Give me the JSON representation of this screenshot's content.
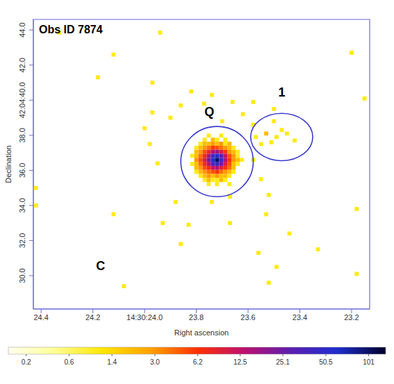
{
  "chart_data": {
    "type": "image",
    "title": "Obs ID 7874",
    "x_label": "Right ascension",
    "y_label": "Declination",
    "xlim": [
      24.43,
      23.13
    ],
    "xticks": [
      24.4,
      24.2,
      {
        "value": 24.0,
        "label": "14:30:24.0"
      },
      23.8,
      23.6,
      23.4,
      23.2
    ],
    "ylim": [
      28.1,
      44.6
    ],
    "yticks": [
      {
        "value": 30,
        "label": "30.0"
      },
      {
        "value": 32,
        "label": "32.0"
      },
      {
        "value": 34,
        "label": "34.0"
      },
      {
        "value": 36,
        "label": "36.0"
      },
      {
        "value": 38,
        "label": "38.0"
      },
      {
        "value": 40,
        "label": "42:04:40.0"
      },
      {
        "value": 42,
        "label": "42.0"
      },
      {
        "value": 44,
        "label": "44.0"
      }
    ],
    "pixel_size": [
      0.016,
      0.23
    ],
    "image": {
      "x": [
        23.816,
        23.8,
        23.784,
        23.768,
        23.752,
        23.736,
        23.72,
        23.704,
        23.688,
        23.672,
        23.656,
        23.64,
        23.624
      ],
      "y": [
        37.98,
        37.75,
        37.52,
        37.29,
        37.06,
        36.83,
        36.6,
        36.37,
        36.14,
        35.91,
        35.68,
        35.45,
        35.22
      ],
      "values": [
        [
          null,
          null,
          null,
          null,
          1,
          null,
          null,
          1,
          null,
          null,
          null,
          null,
          null
        ],
        [
          null,
          null,
          null,
          1,
          null,
          2,
          1,
          null,
          1,
          null,
          null,
          null,
          null
        ],
        [
          null,
          null,
          1,
          2,
          2,
          3,
          2,
          3,
          1,
          2,
          null,
          null,
          null
        ],
        [
          null,
          1,
          2,
          3,
          4,
          6,
          5,
          4,
          3,
          2,
          1,
          null,
          null
        ],
        [
          null,
          2,
          3,
          5,
          8,
          14,
          16,
          10,
          6,
          3,
          2,
          1,
          null
        ],
        [
          1,
          2,
          4,
          7,
          16,
          40,
          55,
          30,
          12,
          5,
          3,
          1,
          null
        ],
        [
          null,
          3,
          5,
          9,
          22,
          60,
          101,
          45,
          15,
          6,
          3,
          2,
          1
        ],
        [
          1,
          2,
          4,
          7,
          14,
          35,
          42,
          25,
          10,
          5,
          2,
          1,
          null
        ],
        [
          null,
          2,
          3,
          5,
          7,
          12,
          14,
          9,
          6,
          4,
          2,
          null,
          null
        ],
        [
          null,
          1,
          2,
          3,
          4,
          5,
          6,
          4,
          3,
          2,
          1,
          null,
          null
        ],
        [
          null,
          null,
          1,
          2,
          3,
          2,
          3,
          2,
          2,
          1,
          null,
          null,
          null
        ],
        [
          null,
          null,
          null,
          1,
          2,
          1,
          1,
          2,
          1,
          null,
          null,
          null,
          null
        ],
        [
          null,
          null,
          null,
          null,
          1,
          null,
          1,
          null,
          null,
          1,
          null,
          null,
          null
        ]
      ]
    },
    "events": [
      [
        24.33,
        43.85,
        1
      ],
      [
        23.94,
        43.85,
        1
      ],
      [
        24.12,
        42.6,
        1
      ],
      [
        23.2,
        42.7,
        1
      ],
      [
        24.18,
        41.3,
        1
      ],
      [
        23.97,
        41.0,
        1
      ],
      [
        23.82,
        40.5,
        1
      ],
      [
        23.74,
        40.3,
        1
      ],
      [
        23.15,
        40.1,
        1
      ],
      [
        23.86,
        39.7,
        1
      ],
      [
        23.77,
        39.8,
        1
      ],
      [
        23.66,
        39.9,
        1
      ],
      [
        23.58,
        39.9,
        1
      ],
      [
        23.5,
        39.5,
        1
      ],
      [
        23.97,
        39.3,
        1
      ],
      [
        23.9,
        39.0,
        1
      ],
      [
        23.62,
        39.2,
        1
      ],
      [
        23.7,
        38.8,
        1
      ],
      [
        23.58,
        38.6,
        1
      ],
      [
        23.5,
        38.8,
        1
      ],
      [
        23.47,
        38.3,
        1
      ],
      [
        23.53,
        38.1,
        2
      ],
      [
        23.49,
        37.9,
        1
      ],
      [
        23.45,
        38.1,
        1
      ],
      [
        23.51,
        37.6,
        1
      ],
      [
        23.55,
        37.5,
        1
      ],
      [
        23.42,
        37.7,
        1
      ],
      [
        23.57,
        37.9,
        1
      ],
      [
        24.0,
        38.4,
        1
      ],
      [
        23.98,
        37.5,
        1
      ],
      [
        23.95,
        36.4,
        1
      ],
      [
        23.58,
        36.6,
        1
      ],
      [
        23.55,
        35.5,
        1
      ],
      [
        23.52,
        34.6,
        1
      ],
      [
        23.88,
        34.2,
        1
      ],
      [
        23.74,
        34.2,
        1
      ],
      [
        23.67,
        34.5,
        1
      ],
      [
        24.42,
        34.0,
        1
      ],
      [
        24.42,
        35.0,
        1
      ],
      [
        24.12,
        33.5,
        1
      ],
      [
        23.93,
        33.0,
        1
      ],
      [
        23.83,
        32.9,
        1
      ],
      [
        23.67,
        33.0,
        1
      ],
      [
        23.53,
        33.5,
        1
      ],
      [
        23.44,
        32.4,
        1
      ],
      [
        23.33,
        31.5,
        1
      ],
      [
        23.56,
        31.3,
        1
      ],
      [
        23.18,
        33.8,
        1
      ],
      [
        23.86,
        31.8,
        1
      ],
      [
        23.49,
        30.5,
        1
      ],
      [
        23.52,
        29.6,
        1
      ],
      [
        23.18,
        30.1,
        1
      ],
      [
        24.08,
        29.4,
        1
      ]
    ],
    "regions": [
      {
        "x": 23.72,
        "y": 36.5,
        "rx": 0.14,
        "ry": 2.0
      },
      {
        "x": 23.47,
        "y": 37.9,
        "rx": 0.12,
        "ry": 1.35
      }
    ],
    "annotations": [
      {
        "text": "Q",
        "x": 23.75,
        "y": 39.3
      },
      {
        "text": "1",
        "x": 23.47,
        "y": 40.4
      },
      {
        "text": "C",
        "x": 24.17,
        "y": 30.5
      }
    ],
    "colorbar": {
      "range": [
        0.1,
        133
      ],
      "ticks": [
        0.2,
        0.6,
        1.4,
        {
          "value": 3,
          "label": "3.0"
        },
        6.2,
        12.5,
        25.1,
        50.5,
        101
      ]
    }
  }
}
